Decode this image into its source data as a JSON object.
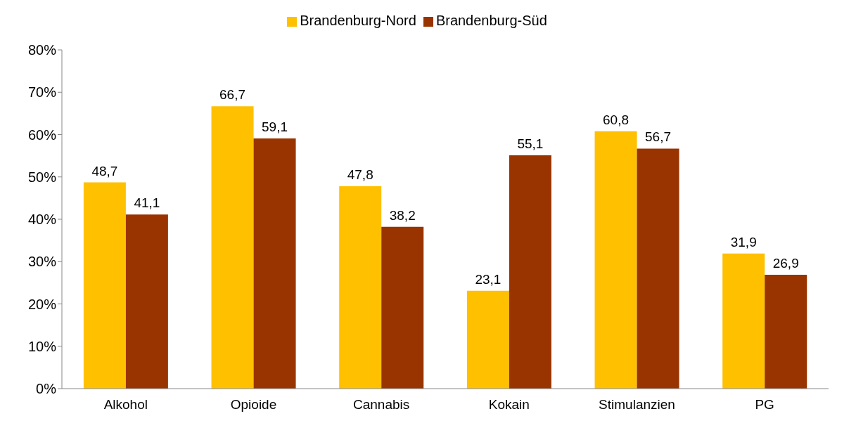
{
  "chart_data": {
    "type": "bar",
    "categories": [
      "Alkohol",
      "Opioide",
      "Cannabis",
      "Kokain",
      "Stimulanzien",
      "PG"
    ],
    "series": [
      {
        "name": "Brandenburg-Nord",
        "color": "#ffc000",
        "values": [
          48.7,
          66.7,
          47.8,
          23.1,
          60.8,
          31.9
        ],
        "value_labels": [
          "48,7",
          "66,7",
          "47,8",
          "23,1",
          "60,8",
          "31,9"
        ]
      },
      {
        "name": "Brandenburg-Süd",
        "color": "#993300",
        "values": [
          41.1,
          59.1,
          38.2,
          55.1,
          56.7,
          26.9
        ],
        "value_labels": [
          "41,1",
          "59,1",
          "38,2",
          "55,1",
          "56,7",
          "26,9"
        ]
      }
    ],
    "ylim": [
      0,
      80
    ],
    "yticks": [
      {
        "value": 0,
        "label": "0%"
      },
      {
        "value": 10,
        "label": "10%"
      },
      {
        "value": 20,
        "label": "20%"
      },
      {
        "value": 30,
        "label": "30%"
      },
      {
        "value": 40,
        "label": "40%"
      },
      {
        "value": 50,
        "label": "50%"
      },
      {
        "value": 60,
        "label": "60%"
      },
      {
        "value": 70,
        "label": "70%"
      },
      {
        "value": 80,
        "label": "80%"
      }
    ],
    "grid": false,
    "legend": "top"
  }
}
